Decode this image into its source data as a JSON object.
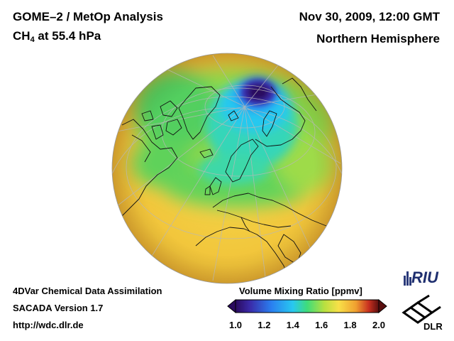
{
  "header": {
    "title": "GOME–2 / MetOp Analysis",
    "species_prefix": "CH",
    "species_sub": "4",
    "species_suffix": " at 55.4 hPa",
    "date": "Nov 30, 2009, 12:00 GMT",
    "region": "Northern Hemisphere"
  },
  "footer": {
    "line1": "4DVar Chemical Data Assimilation",
    "line2": "SACADA Version 1.7",
    "line3": "http://wdc.dlr.de"
  },
  "colorbar": {
    "title": "Volume Mixing Ratio [ppmv]",
    "ticks": [
      "1.0",
      "1.2",
      "1.4",
      "1.6",
      "1.8",
      "2.0"
    ],
    "min": 1.0,
    "max": 2.0
  },
  "logos": {
    "riu": "RIU",
    "dlr": "DLR"
  },
  "colors": {
    "low": "#2a0a5e",
    "mid_low": "#28c8f0",
    "mid": "#3fdc7a",
    "mid_high": "#f8e048",
    "high": "#f0a030",
    "very_high": "#5a0f0f"
  }
}
